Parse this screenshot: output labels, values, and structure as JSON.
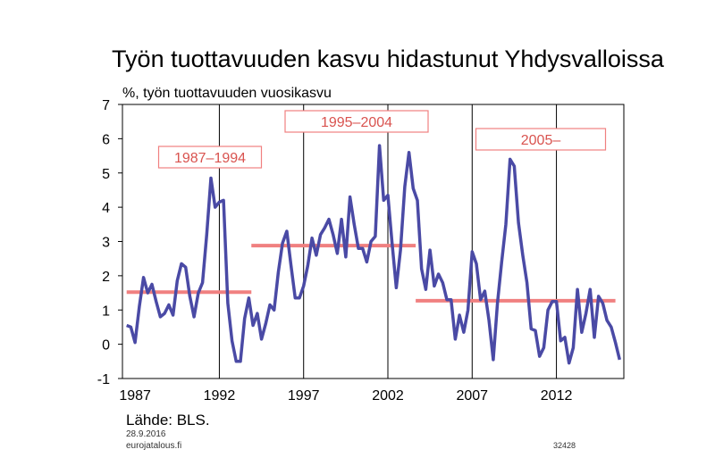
{
  "chart_data": {
    "type": "line",
    "title": "Työn tuottavuuden kasvu hidastunut Yhdysvalloissa",
    "ylabel": "%, työn tuottavuuden vuosikasvu",
    "xlabel": "",
    "ylim": [
      -1,
      7
    ],
    "xlim": [
      1986.75,
      2016.5
    ],
    "yticks": [
      -1,
      0,
      1,
      2,
      3,
      4,
      5,
      6,
      7
    ],
    "xticks": [
      "1987",
      "1992",
      "1997",
      "2002",
      "2007",
      "2012"
    ],
    "grid": "vertical",
    "line_color": "#4a4aa5",
    "avg_color": "#f08080",
    "series": [
      {
        "x": [
          1987.0,
          1987.25,
          1987.5,
          1987.75,
          1988.0,
          1988.25,
          1988.5,
          1988.75,
          1989.0,
          1989.25,
          1989.5,
          1989.75,
          1990.0,
          1990.25,
          1990.5,
          1990.75,
          1991.0,
          1991.25,
          1991.5,
          1991.75,
          1992.0,
          1992.25,
          1992.5,
          1992.75,
          1993.0,
          1993.25,
          1993.5,
          1993.75,
          1994.0,
          1994.25,
          1994.5,
          1994.75,
          1995.0,
          1995.25,
          1995.5,
          1995.75,
          1996.0,
          1996.25,
          1996.5,
          1996.75,
          1997.0,
          1997.25,
          1997.5,
          1997.75,
          1998.0,
          1998.25,
          1998.5,
          1998.75,
          1999.0,
          1999.25,
          1999.5,
          1999.75,
          2000.0,
          2000.25,
          2000.5,
          2000.75,
          2001.0,
          2001.25,
          2001.5,
          2001.75,
          2002.0,
          2002.25,
          2002.5,
          2002.75,
          2003.0,
          2003.25,
          2003.5,
          2003.75,
          2004.0,
          2004.25,
          2004.5,
          2004.75,
          2005.0,
          2005.25,
          2005.5,
          2005.75,
          2006.0,
          2006.25,
          2006.5,
          2006.75,
          2007.0,
          2007.25,
          2007.5,
          2007.75,
          2008.0,
          2008.25,
          2008.5,
          2008.75,
          2009.0,
          2009.25,
          2009.5,
          2009.75,
          2010.0,
          2010.25,
          2010.5,
          2010.75,
          2011.0,
          2011.25,
          2011.5,
          2011.75,
          2012.0,
          2012.25,
          2012.5,
          2012.75,
          2013.0,
          2013.25,
          2013.5,
          2013.75,
          2014.0,
          2014.25,
          2014.5,
          2014.75,
          2015.0,
          2015.25,
          2015.5,
          2015.75,
          2016.0,
          2016.25
        ],
        "values": [
          0.55,
          0.5,
          0.05,
          1.1,
          1.95,
          1.5,
          1.75,
          1.25,
          0.8,
          0.9,
          1.15,
          0.85,
          1.85,
          2.35,
          2.25,
          1.4,
          0.8,
          1.5,
          1.8,
          3.2,
          4.85,
          4.0,
          4.15,
          4.2,
          1.2,
          0.1,
          -0.5,
          -0.5,
          0.75,
          1.35,
          0.55,
          0.9,
          0.15,
          0.6,
          1.15,
          1.0,
          2.1,
          2.95,
          3.3,
          2.3,
          1.35,
          1.35,
          1.7,
          2.3,
          3.1,
          2.6,
          3.2,
          3.4,
          3.65,
          3.2,
          2.65,
          3.65,
          2.55,
          4.3,
          3.5,
          2.8,
          2.8,
          2.4,
          3.0,
          3.15,
          5.8,
          4.2,
          4.35,
          2.95,
          1.65,
          2.75,
          4.6,
          5.6,
          4.55,
          4.2,
          2.2,
          1.6,
          2.75,
          1.7,
          2.05,
          1.8,
          1.3,
          1.3,
          0.15,
          0.85,
          0.35,
          1.0,
          2.7,
          2.35,
          1.3,
          1.55,
          0.7,
          -0.45,
          1.2,
          2.4,
          3.5,
          5.4,
          5.2,
          3.55,
          2.6,
          1.8,
          0.45,
          0.4,
          -0.35,
          -0.1,
          1.0,
          1.25,
          1.25,
          0.1,
          0.2,
          -0.55,
          -0.1,
          1.6,
          0.35,
          0.9,
          1.6,
          0.2,
          1.4,
          1.2,
          0.7,
          0.5,
          0.05,
          -0.45
        ]
      }
    ],
    "period_averages": [
      {
        "label": "1987–1994",
        "start": 1987.0,
        "end": 1994.4,
        "value": 1.52
      },
      {
        "label": "1995–2004",
        "start": 1994.4,
        "end": 2004.15,
        "value": 2.88
      },
      {
        "label": "2005–",
        "start": 2004.15,
        "end": 2016.0,
        "value": 1.27
      }
    ]
  },
  "footer": {
    "source": "Lähde: BLS.",
    "date": "28.9.2016",
    "site": "eurojatalous.fi",
    "code": "32428"
  }
}
